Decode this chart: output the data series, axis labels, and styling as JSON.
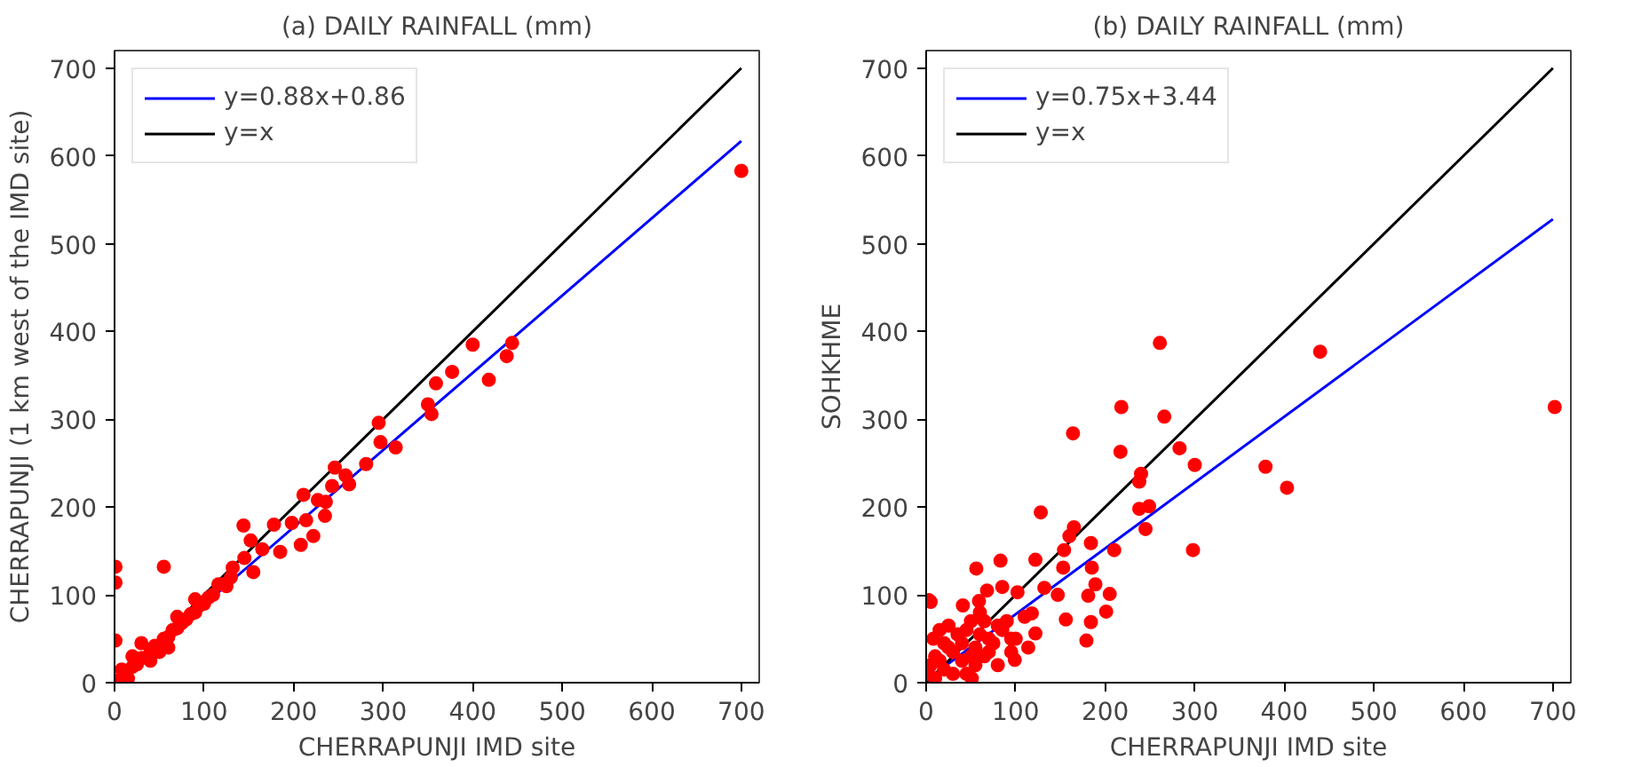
{
  "chart_data": [
    {
      "type": "scatter",
      "title": "(a) DAILY RAINFALL (mm)",
      "xlabel": "CHERRAPUNJI IMD site",
      "ylabel": "CHERRAPUNJI (1 km west of the IMD site)",
      "xlim": [
        0,
        720
      ],
      "ylim": [
        0,
        720
      ],
      "xticks": [
        0,
        100,
        200,
        300,
        400,
        500,
        600,
        700
      ],
      "yticks": [
        0,
        100,
        200,
        300,
        400,
        500,
        600,
        700
      ],
      "grid": false,
      "legend": "top left",
      "series": [
        {
          "type": "line",
          "name": "y=0.88x+0.86",
          "color": "#0000ff",
          "x": [
            0,
            700
          ],
          "values": [
            1,
            617
          ]
        },
        {
          "type": "line",
          "name": "y=x",
          "color": "#000000",
          "x": [
            0,
            700
          ],
          "values": [
            0,
            700
          ]
        },
        {
          "marker": "circle",
          "color": "#ff0000",
          "x": [
            700,
            444,
            438,
            418,
            400,
            377,
            359,
            350,
            354,
            295,
            297,
            314,
            281,
            246,
            258,
            262,
            243,
            236,
            227,
            235,
            222,
            211,
            208,
            214,
            198,
            185,
            178,
            144,
            152,
            165,
            145,
            132,
            155,
            116,
            55,
            1,
            1,
            1,
            5,
            20,
            25,
            30,
            40,
            45,
            55,
            60,
            65,
            70,
            75,
            80,
            85,
            90,
            95,
            100,
            105,
            110,
            120,
            125,
            130,
            30,
            20,
            40,
            15,
            60,
            8,
            50,
            70,
            90
          ],
          "values": [
            583,
            387,
            372,
            345,
            385,
            354,
            341,
            317,
            306,
            296,
            274,
            268,
            249,
            245,
            236,
            226,
            224,
            206,
            208,
            190,
            167,
            214,
            157,
            185,
            182,
            149,
            180,
            179,
            162,
            152,
            142,
            131,
            126,
            112,
            132,
            132,
            114,
            48,
            3,
            18,
            21,
            28,
            35,
            42,
            50,
            52,
            60,
            62,
            68,
            72,
            78,
            80,
            88,
            90,
            97,
            100,
            112,
            110,
            120,
            45,
            30,
            25,
            5,
            40,
            15,
            35,
            75,
            95
          ]
        }
      ]
    },
    {
      "type": "scatter",
      "title": "(b) DAILY RAINFALL (mm)",
      "xlabel": "CHERRAPUNJI IMD site",
      "ylabel": "SOHKHME",
      "xlim": [
        0,
        720
      ],
      "ylim": [
        0,
        720
      ],
      "xticks": [
        0,
        100,
        200,
        300,
        400,
        500,
        600,
        700
      ],
      "yticks": [
        0,
        100,
        200,
        300,
        400,
        500,
        600,
        700
      ],
      "grid": false,
      "legend": "top left",
      "series": [
        {
          "type": "line",
          "name": "y=0.75x+3.44",
          "color": "#0000ff",
          "x": [
            0,
            700
          ],
          "values": [
            3,
            528
          ]
        },
        {
          "type": "line",
          "name": "y=x",
          "color": "#000000",
          "x": [
            0,
            700
          ],
          "values": [
            0,
            700
          ]
        },
        {
          "marker": "circle",
          "color": "#ff0000",
          "x": [
            702,
            261,
            440,
            218,
            266,
            164,
            217,
            283,
            300,
            379,
            403,
            240,
            238,
            238,
            249,
            245,
            298,
            128,
            165,
            160,
            154,
            184,
            210,
            185,
            189,
            205,
            181,
            201,
            184,
            179,
            156,
            153,
            122,
            83,
            56,
            147,
            132,
            118,
            122,
            114,
            99,
            95,
            80,
            51,
            3,
            5,
            102,
            68,
            41,
            59,
            85,
            2,
            5,
            10,
            15,
            20,
            25,
            30,
            35,
            40,
            45,
            50,
            55,
            60,
            65,
            70,
            75,
            80,
            85,
            90,
            10,
            20,
            30,
            40,
            50,
            60,
            70,
            8,
            15,
            25,
            55,
            65,
            100,
            110,
            95,
            45
          ],
          "values": [
            314,
            387,
            377,
            314,
            303,
            284,
            263,
            267,
            248,
            246,
            222,
            238,
            229,
            198,
            201,
            175,
            151,
            194,
            177,
            167,
            151,
            159,
            151,
            131,
            112,
            101,
            99,
            81,
            69,
            48,
            72,
            131,
            140,
            139,
            130,
            100,
            108,
            79,
            56,
            40,
            26,
            50,
            20,
            5,
            94,
            92,
            103,
            105,
            88,
            93,
            109,
            10,
            20,
            30,
            25,
            15,
            40,
            35,
            55,
            45,
            60,
            30,
            40,
            55,
            70,
            50,
            45,
            65,
            60,
            70,
            5,
            45,
            10,
            25,
            70,
            80,
            35,
            50,
            60,
            65,
            20,
            30,
            50,
            75,
            35,
            10
          ]
        }
      ]
    }
  ]
}
